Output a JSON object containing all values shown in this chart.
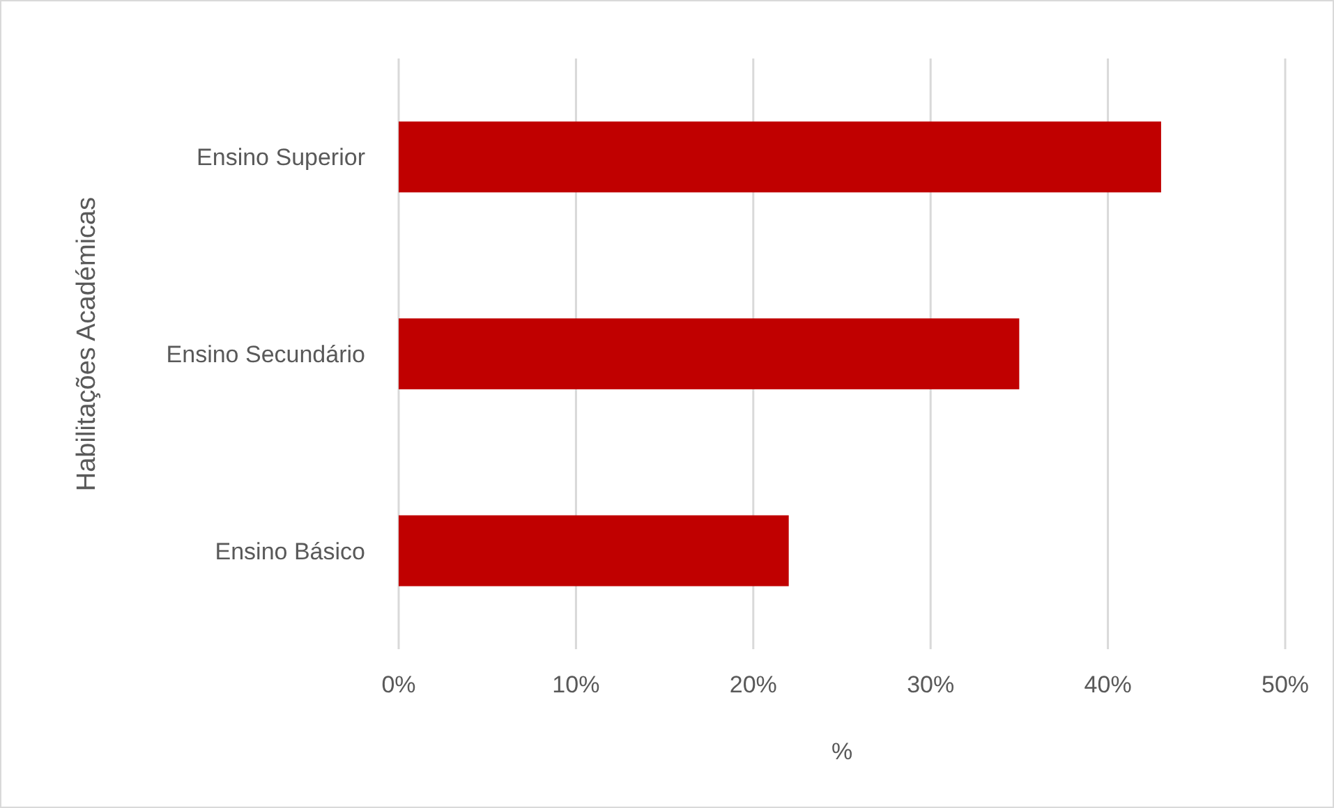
{
  "chart_data": {
    "type": "bar",
    "orientation": "horizontal",
    "categories": [
      "Ensino Superior",
      "Ensino Secundário",
      "Ensino Básico"
    ],
    "values": [
      43,
      35,
      22
    ],
    "color": "#c00000",
    "xlim": [
      0,
      50
    ],
    "xticks": [
      {
        "value": 0,
        "label": "0%"
      },
      {
        "value": 10,
        "label": "10%"
      },
      {
        "value": 20,
        "label": "20%"
      },
      {
        "value": 30,
        "label": "30%"
      },
      {
        "value": 40,
        "label": "40%"
      },
      {
        "value": 50,
        "label": "50%"
      }
    ],
    "xlabel": "%",
    "ylabel": "Habilitações Académicas",
    "grid": "x"
  }
}
